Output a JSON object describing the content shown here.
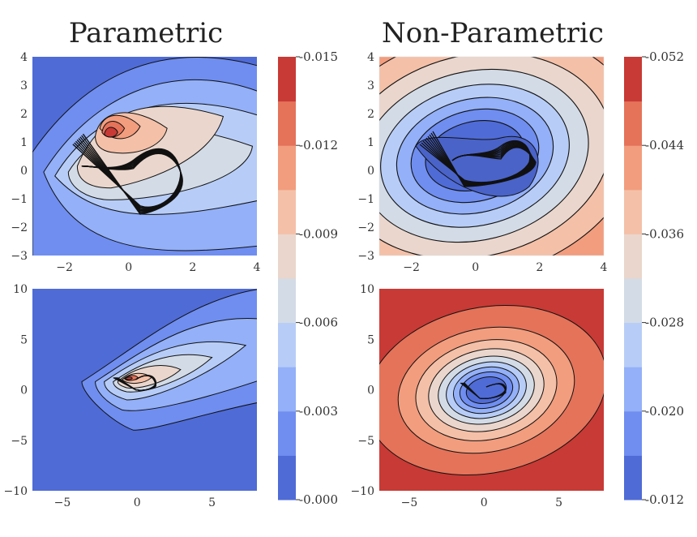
{
  "titles": {
    "left": "Parametric",
    "right": "Non-Parametric"
  },
  "chart_data": [
    {
      "type": "contour",
      "panel": "top-left",
      "colormap": "coolwarm",
      "xlim": [
        -3,
        4
      ],
      "ylim": [
        -3,
        4
      ],
      "xticks": [
        -2,
        0,
        2,
        4
      ],
      "yticks": [
        -3,
        -2,
        -1,
        0,
        1,
        2,
        3,
        4
      ],
      "colorbar": {
        "ticks": [
          0.0,
          0.003,
          0.006,
          0.009,
          0.012,
          0.015
        ],
        "levels": [
          0.0,
          0.0015,
          0.003,
          0.0045,
          0.006,
          0.0075,
          0.009,
          0.0105,
          0.012,
          0.0135,
          0.015
        ]
      }
    },
    {
      "type": "contour",
      "panel": "top-right",
      "colormap": "coolwarm",
      "xlim": [
        -3,
        4
      ],
      "ylim": [
        -3,
        4
      ],
      "xticks": [
        -2,
        0,
        2,
        4
      ],
      "yticks": [
        -3,
        -2,
        -1,
        0,
        1,
        2,
        3,
        4
      ],
      "colorbar": {
        "ticks": [
          0.012,
          0.02,
          0.028,
          0.036,
          0.044,
          0.052
        ],
        "levels": [
          0.012,
          0.016,
          0.02,
          0.024,
          0.028,
          0.032,
          0.036,
          0.04,
          0.044,
          0.048,
          0.052
        ]
      }
    },
    {
      "type": "contour",
      "panel": "bottom-left",
      "colormap": "coolwarm",
      "xlim": [
        -7,
        8
      ],
      "ylim": [
        -10,
        10
      ],
      "xticks": [
        -5,
        0,
        5
      ],
      "yticks": [
        -10,
        -5,
        0,
        5,
        10
      ]
    },
    {
      "type": "contour",
      "panel": "bottom-right",
      "colormap": "coolwarm",
      "xlim": [
        -7,
        8
      ],
      "ylim": [
        -10,
        10
      ],
      "xticks": [
        -5,
        0,
        5
      ],
      "yticks": [
        -10,
        -5,
        0,
        5,
        10
      ]
    }
  ],
  "colorbars": {
    "left": [
      "0.000",
      "0.003",
      "0.006",
      "0.009",
      "0.012",
      "0.015"
    ],
    "right": [
      "0.012",
      "0.020",
      "0.028",
      "0.036",
      "0.044",
      "0.052"
    ]
  },
  "colors": {
    "levels": [
      "#4f6bd6",
      "#6f8ef0",
      "#93b0f8",
      "#b7cdf7",
      "#d3dbe6",
      "#ead6cc",
      "#f4c0a8",
      "#f29d7e",
      "#e4735a",
      "#c83a35"
    ]
  }
}
